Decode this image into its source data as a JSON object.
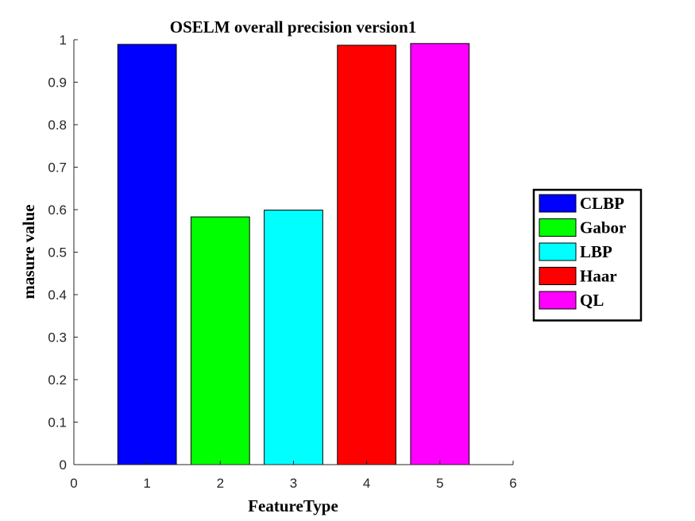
{
  "chart_data": {
    "type": "bar",
    "title": "OSELM overall precision version1",
    "xlabel": "FeatureType",
    "ylabel": "masure value",
    "xlim": [
      0,
      6
    ],
    "ylim": [
      0,
      1
    ],
    "xticks": [
      0,
      1,
      2,
      3,
      4,
      5,
      6
    ],
    "yticks": [
      0,
      0.1,
      0.2,
      0.3,
      0.4,
      0.5,
      0.6,
      0.7,
      0.8,
      0.9,
      1
    ],
    "ytick_labels": [
      "0",
      "0.1",
      "0.2",
      "0.3",
      "0.4",
      "0.5",
      "0.6",
      "0.7",
      "0.8",
      "0.9",
      "1"
    ],
    "grid": false,
    "legend_position": "right",
    "series": [
      {
        "name": "CLBP",
        "x": 1,
        "value": 0.989,
        "color": "#0000ff"
      },
      {
        "name": "Gabor",
        "x": 2,
        "value": 0.583,
        "color": "#00ff00"
      },
      {
        "name": "LBP",
        "x": 3,
        "value": 0.599,
        "color": "#00ffff"
      },
      {
        "name": "Haar",
        "x": 4,
        "value": 0.987,
        "color": "#ff0000"
      },
      {
        "name": "QL",
        "x": 5,
        "value": 0.991,
        "color": "#ff00ff"
      }
    ]
  }
}
